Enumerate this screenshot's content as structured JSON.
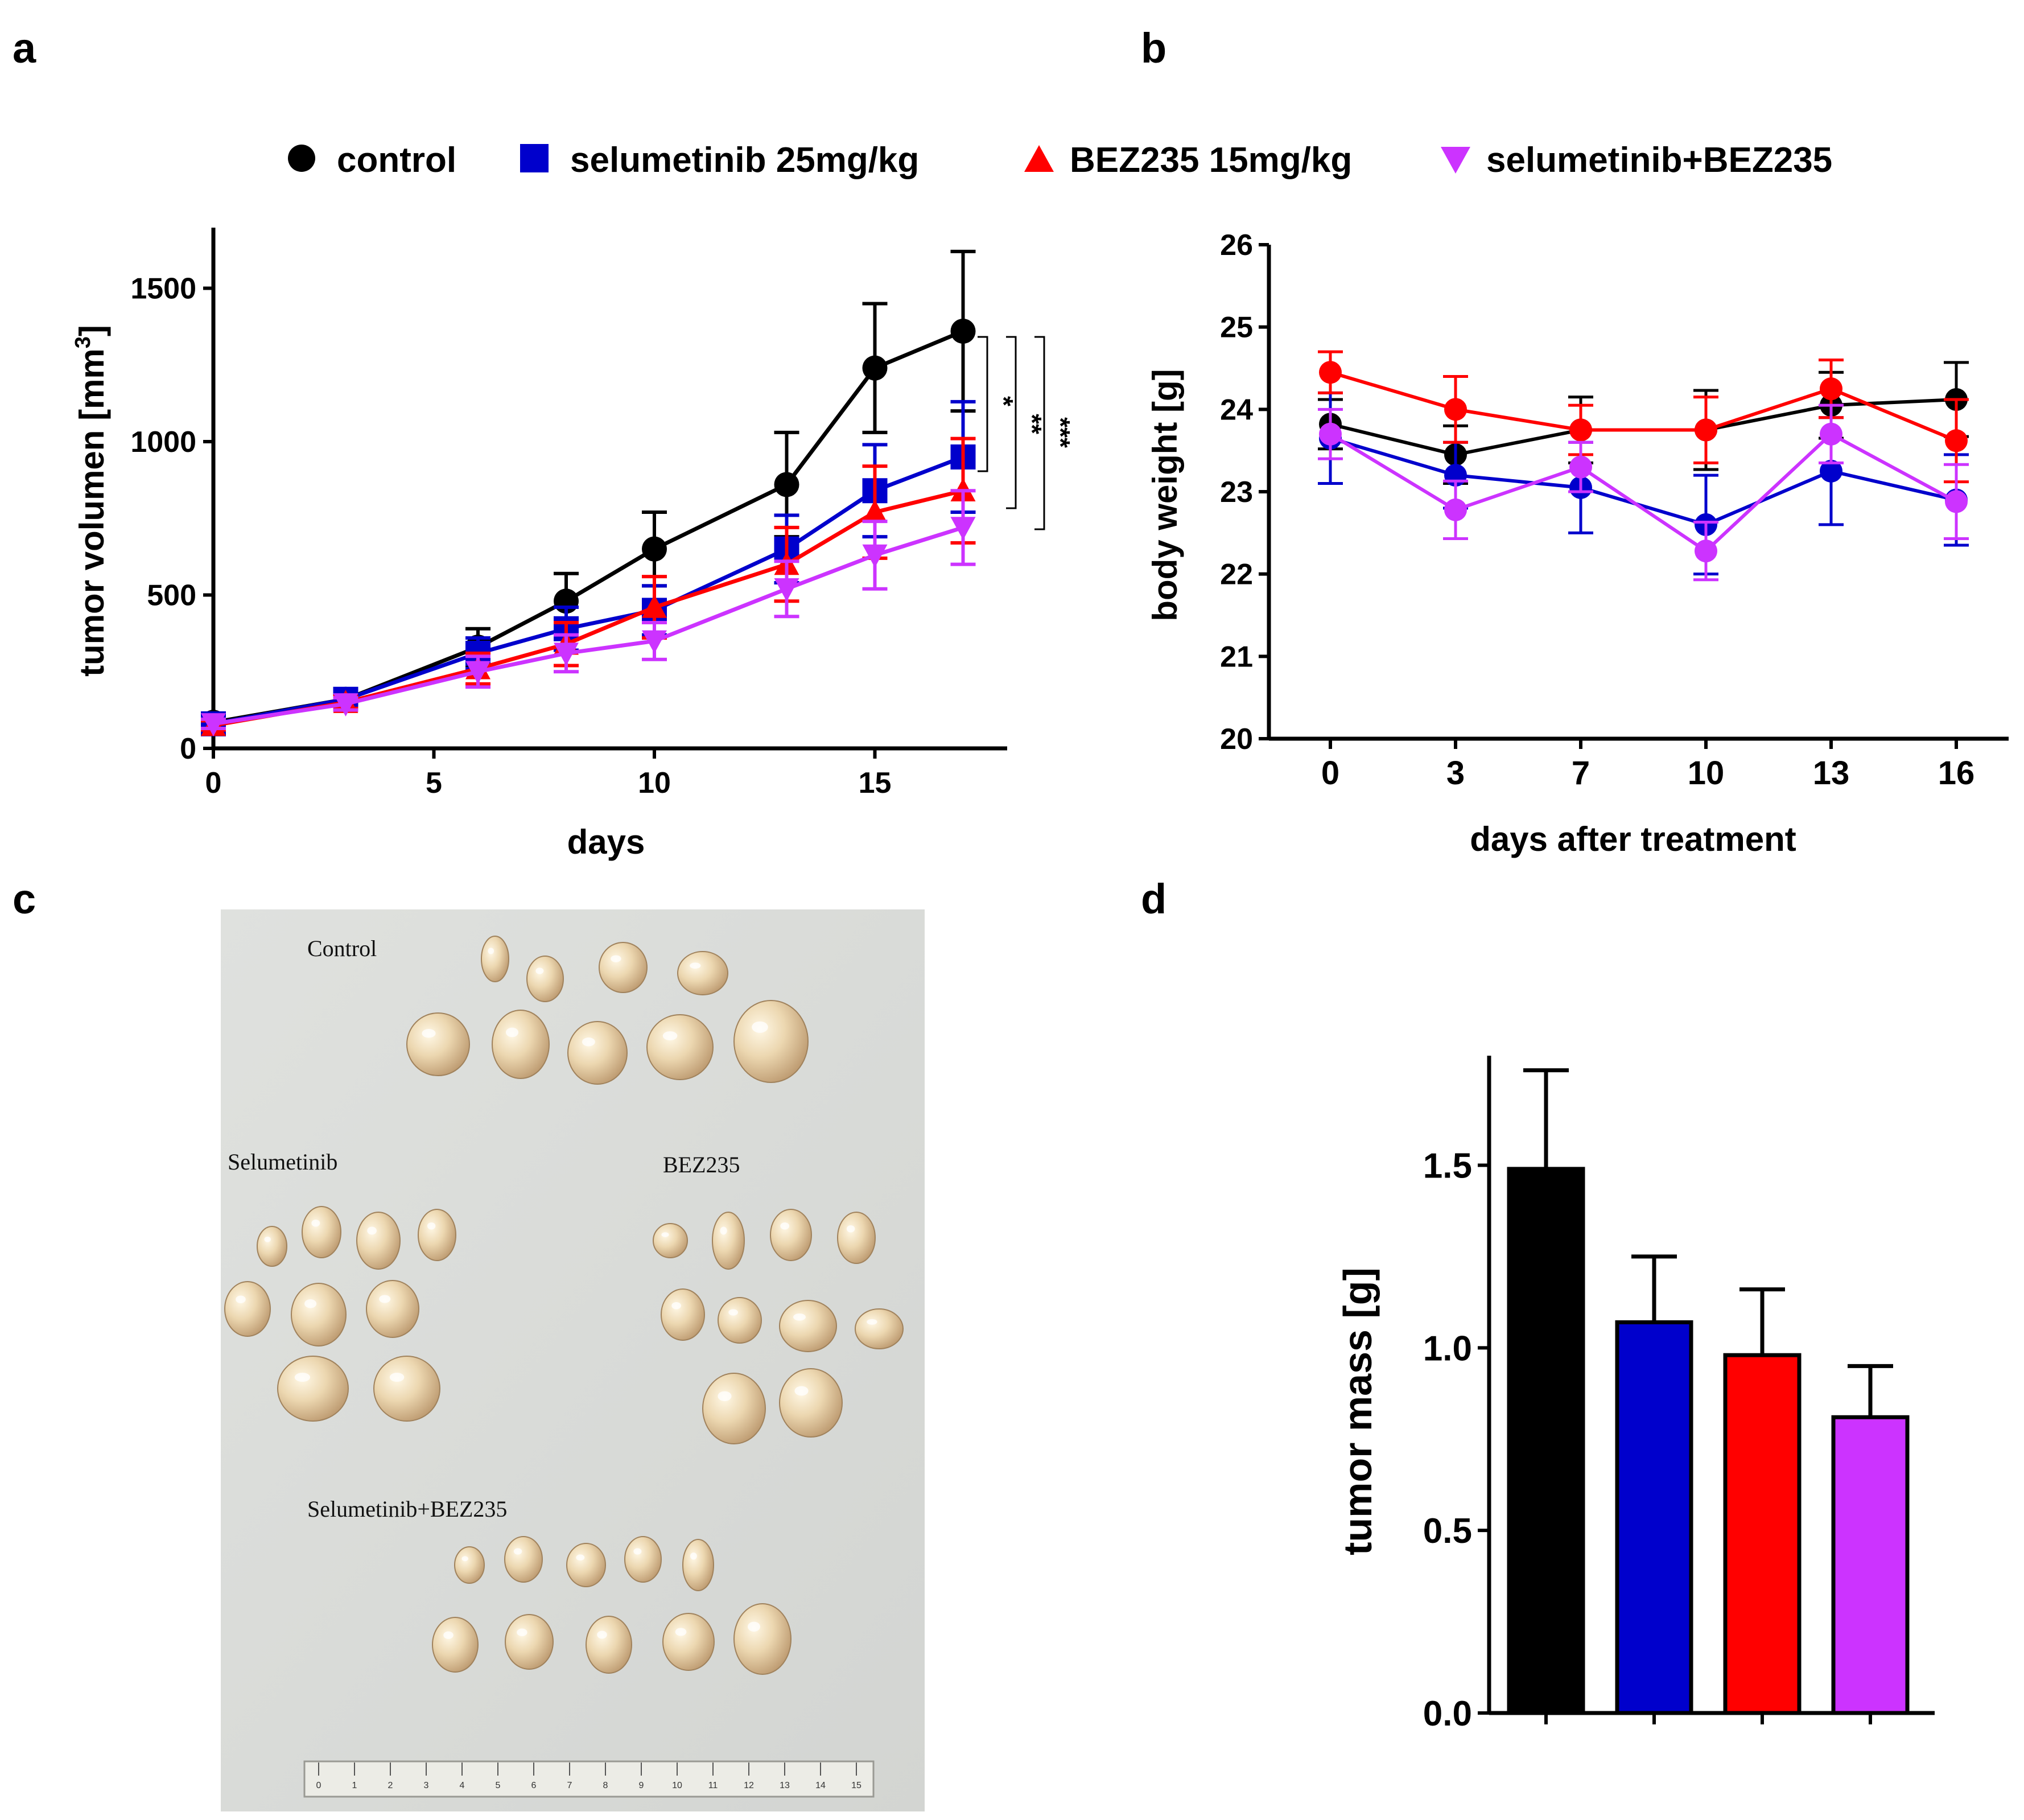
{
  "figure": {
    "panel_labels": [
      "a",
      "b",
      "c",
      "d"
    ],
    "legend": [
      {
        "label": "control",
        "color": "#000000",
        "marker": "circle"
      },
      {
        "label": "selumetinib 25mg/kg",
        "color": "#0000cc",
        "marker": "square"
      },
      {
        "label": "BEZ235 15mg/kg",
        "color": "#ff0000",
        "marker": "triangle"
      },
      {
        "label": "selumetinib+BEZ235",
        "color": "#cc33ff",
        "marker": "triangle-down"
      }
    ],
    "photo": {
      "labels": [
        "Control",
        "Selumetinib",
        "BEZ235",
        "Selumetinib+BEZ235"
      ],
      "ruler_ticks": [
        "0",
        "1",
        "2",
        "3",
        "4",
        "5",
        "6",
        "7",
        "8",
        "9",
        "10",
        "11",
        "12",
        "13",
        "14",
        "15"
      ]
    }
  },
  "chart_data": [
    {
      "id": "a",
      "type": "line",
      "xlabel": "days",
      "ylabel": "tumor volumen [mm",
      "ylabel_sup": "3",
      "ylabel_end": "]",
      "xlim": [
        0,
        18
      ],
      "ylim": [
        0,
        1700
      ],
      "xticks": [
        0,
        5,
        10,
        15
      ],
      "yticks": [
        0,
        500,
        1000,
        1500
      ],
      "series": [
        {
          "name": "control",
          "color": "#000000",
          "marker": "circle",
          "x": [
            0,
            3,
            6,
            8,
            10,
            13,
            15,
            17
          ],
          "values": [
            85,
            160,
            330,
            480,
            650,
            860,
            1240,
            1360
          ],
          "errors": [
            15,
            20,
            60,
            90,
            120,
            170,
            210,
            260
          ]
        },
        {
          "name": "selumetinib 25mg/kg",
          "color": "#0000cc",
          "marker": "square",
          "x": [
            0,
            3,
            6,
            8,
            10,
            13,
            15,
            17
          ],
          "values": [
            80,
            160,
            310,
            390,
            450,
            650,
            840,
            950
          ],
          "errors": [
            15,
            20,
            50,
            70,
            80,
            110,
            150,
            180
          ]
        },
        {
          "name": "BEZ235 15mg/kg",
          "color": "#ff0000",
          "marker": "triangle",
          "x": [
            0,
            3,
            6,
            8,
            10,
            13,
            15,
            17
          ],
          "values": [
            75,
            150,
            260,
            340,
            460,
            600,
            770,
            840
          ],
          "errors": [
            15,
            20,
            50,
            70,
            100,
            120,
            150,
            170
          ]
        },
        {
          "name": "selumetinib+BEZ235",
          "color": "#cc33ff",
          "marker": "triangle-down",
          "x": [
            0,
            3,
            6,
            8,
            10,
            13,
            15,
            17
          ],
          "values": [
            80,
            145,
            250,
            310,
            350,
            520,
            630,
            720
          ],
          "errors": [
            15,
            20,
            50,
            60,
            60,
            90,
            110,
            120
          ]
        }
      ],
      "significance": [
        "*",
        "**",
        "***"
      ]
    },
    {
      "id": "b",
      "type": "line",
      "xlabel": "days after treatment",
      "ylabel": "body weight [g]",
      "ylim": [
        20,
        26
      ],
      "categories": [
        "0",
        "3",
        "7",
        "10",
        "13",
        "16"
      ],
      "yticks": [
        20,
        21,
        22,
        23,
        24,
        25,
        26
      ],
      "series": [
        {
          "name": "control",
          "color": "#000000",
          "marker": "circle",
          "values": [
            23.82,
            23.45,
            23.75,
            23.75,
            24.05,
            24.12
          ],
          "errors": [
            0.3,
            0.35,
            0.4,
            0.48,
            0.4,
            0.45
          ]
        },
        {
          "name": "selumetinib 25mg/kg",
          "color": "#0000cc",
          "marker": "circle",
          "values": [
            23.65,
            23.2,
            23.05,
            22.6,
            23.25,
            22.9
          ],
          "errors": [
            0.55,
            0.4,
            0.55,
            0.6,
            0.65,
            0.55
          ]
        },
        {
          "name": "BEZ235 15mg/kg",
          "color": "#ff0000",
          "marker": "circle",
          "values": [
            24.45,
            24.0,
            23.75,
            23.75,
            24.25,
            23.62
          ],
          "errors": [
            0.25,
            0.4,
            0.3,
            0.4,
            0.35,
            0.5
          ]
        },
        {
          "name": "selumetinib+BEZ235",
          "color": "#cc33ff",
          "marker": "circle",
          "values": [
            23.7,
            22.78,
            23.3,
            22.28,
            23.7,
            22.88
          ],
          "errors": [
            0.3,
            0.35,
            0.3,
            0.35,
            0.35,
            0.45
          ]
        }
      ]
    },
    {
      "id": "d",
      "type": "bar",
      "ylabel": "tumor mass [g]",
      "ylim": [
        0,
        1.8
      ],
      "yticks": [
        "0.0",
        "0.5",
        "1.0",
        "1.5"
      ],
      "categories": [
        "control",
        "selumetinib 25mg/kg",
        "BEZ235 15mg/kg",
        "selumetinib+BEZ235"
      ],
      "values": [
        1.49,
        1.07,
        0.98,
        0.81
      ],
      "errors": [
        0.27,
        0.18,
        0.18,
        0.14
      ],
      "colors": [
        "#000000",
        "#0000cc",
        "#ff0000",
        "#cc33ff"
      ]
    }
  ]
}
